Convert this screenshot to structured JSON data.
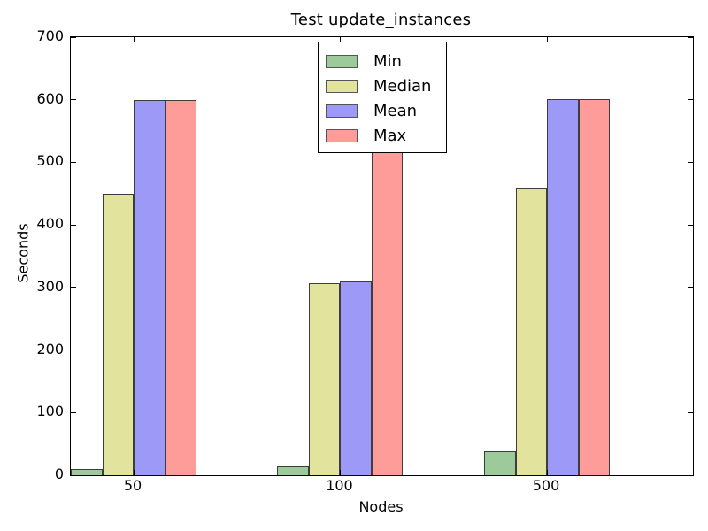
{
  "chart_data": {
    "type": "bar",
    "title": "Test update_instances",
    "xlabel": "Nodes",
    "ylabel": "Seconds",
    "categories": [
      "50",
      "100",
      "500"
    ],
    "series": [
      {
        "name": "Min",
        "color": "#9dca9a",
        "values": [
          10,
          14,
          38
        ]
      },
      {
        "name": "Median",
        "color": "#e2e39d",
        "values": [
          450,
          307,
          460
        ]
      },
      {
        "name": "Mean",
        "color": "#9d99f6",
        "values": [
          599,
          310,
          601
        ]
      },
      {
        "name": "Max",
        "color": "#fd9c99",
        "values": [
          599,
          600,
          601
        ]
      }
    ],
    "ylim": [
      0,
      700
    ],
    "yticks": [
      0,
      100,
      200,
      300,
      400,
      500,
      600,
      700
    ],
    "grid": "off",
    "legend_position": "upper center",
    "bar_edge_color": "#3d3d3d",
    "spine_color": "#000000"
  }
}
